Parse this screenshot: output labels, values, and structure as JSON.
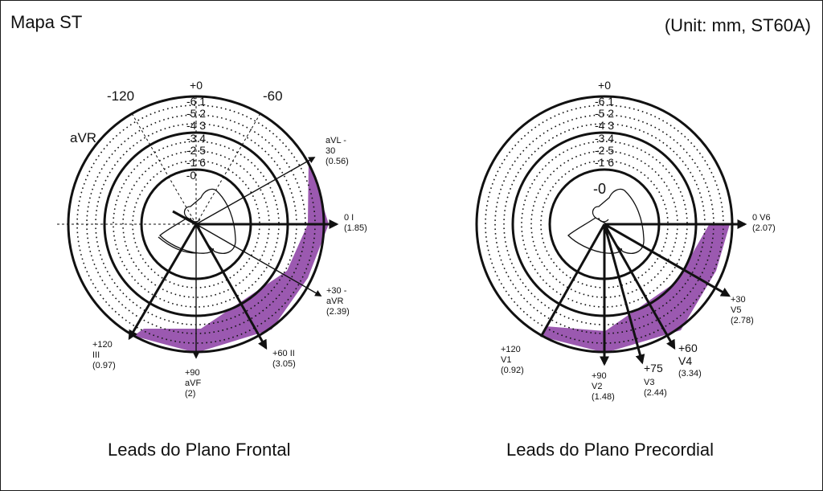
{
  "header": {
    "title": "Mapa ST",
    "unit_note": "(Unit: mm, ST60A)"
  },
  "colors": {
    "st_area": "#9b59b0",
    "ink": "#111111"
  },
  "scale_labels": [
    "-0",
    "-1 6",
    "-2 5",
    "-3 4",
    "-4 3",
    "-5 2",
    "-6 1",
    "+0"
  ],
  "scale_labels_precordial": [
    "-0",
    "-1 6",
    "-2 5",
    "-3 4",
    "-4 3",
    "-5 2",
    "-6 1",
    "+0"
  ],
  "frontal": {
    "caption": "Leads do Plano Frontal",
    "side_label": "aVR",
    "angle_labels": {
      "minus120": "-120",
      "minus60": "-60"
    },
    "leads": [
      {
        "id": "aVL",
        "angle_label": "aVL -",
        "name": "30",
        "value": "(0.56)"
      },
      {
        "id": "I",
        "angle_label": "0 I",
        "name": "",
        "value": "(1.85)"
      },
      {
        "id": "aVR",
        "angle_label": "+30 -",
        "name": "aVR",
        "value": "(2.39)"
      },
      {
        "id": "II",
        "angle_label": "+60 II",
        "name": "",
        "value": "(3.05)"
      },
      {
        "id": "aVF",
        "angle_label": "+90",
        "name": "aVF",
        "value": "(2)"
      },
      {
        "id": "III",
        "angle_label": "+120",
        "name": "III",
        "value": "(0.97)"
      }
    ]
  },
  "precordial": {
    "caption": "Leads do Plano Precordial",
    "leads": [
      {
        "id": "V6",
        "angle_label": "0 V6",
        "name": "",
        "value": "(2.07)"
      },
      {
        "id": "V5",
        "angle_label": "+30",
        "name": "V5",
        "value": "(2.78)"
      },
      {
        "id": "V4",
        "angle_label": "+60",
        "name": "V4",
        "value": "(3.34)"
      },
      {
        "id": "V3",
        "angle_label": "+75",
        "name": "V3",
        "value": "(2.44)"
      },
      {
        "id": "V2",
        "angle_label": "+90",
        "name": "V2",
        "value": "(1.48)"
      },
      {
        "id": "V1",
        "angle_label": "+120",
        "name": "V1",
        "value": "(0.92)"
      }
    ]
  }
}
